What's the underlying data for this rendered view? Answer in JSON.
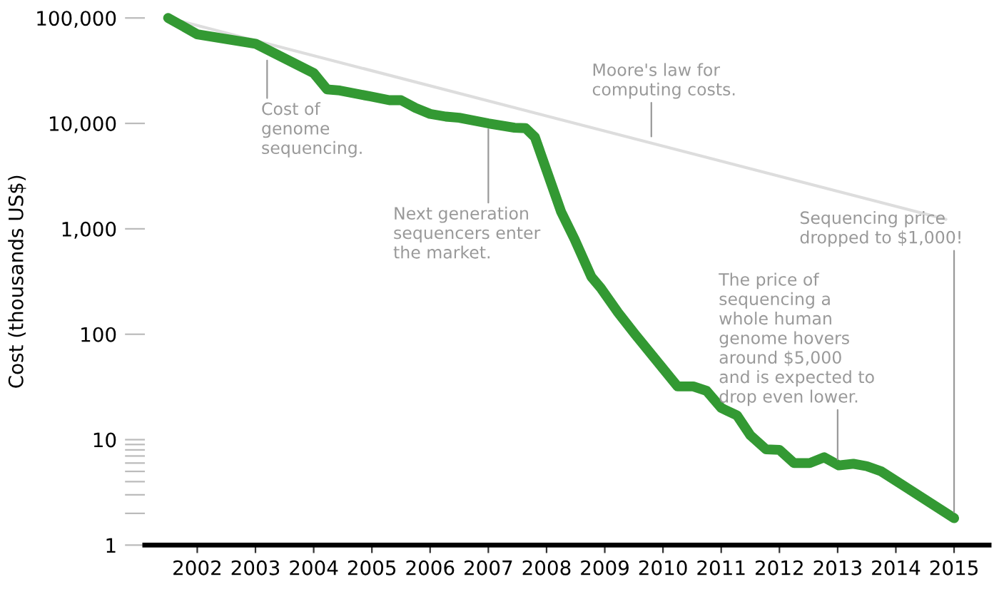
{
  "chart_data": {
    "type": "line",
    "ylabel": "Cost (thousands US$)",
    "log": "y",
    "grid": false,
    "legend": false,
    "marker": "none",
    "line_style": "solid",
    "xlim": [
      2001.1,
      2015.6
    ],
    "xticks": [
      2002,
      2003,
      2004,
      2005,
      2006,
      2007,
      2008,
      2009,
      2010,
      2011,
      2012,
      2013,
      2014,
      2015
    ],
    "ylim": [
      1,
      100000
    ],
    "yticks": [
      {
        "value": 1,
        "label": "1"
      },
      {
        "value": 2,
        "label": null
      },
      {
        "value": 3,
        "label": null
      },
      {
        "value": 4,
        "label": null
      },
      {
        "value": 5,
        "label": null
      },
      {
        "value": 6,
        "label": null
      },
      {
        "value": 7,
        "label": null
      },
      {
        "value": 8,
        "label": null
      },
      {
        "value": 9,
        "label": null
      },
      {
        "value": 10,
        "label": "10"
      },
      {
        "value": 100,
        "label": "100"
      },
      {
        "value": 1000,
        "label": "1,000"
      },
      {
        "value": 10000,
        "label": "10,000"
      },
      {
        "value": 100000,
        "label": "100,000"
      }
    ],
    "series": [
      {
        "color": "#dddddd",
        "x": [
          2001.5,
          2014.86
        ],
        "values": [
          100000,
          1230
        ]
      },
      {
        "color": "#339933",
        "x": [
          2001.5,
          2002.0,
          2003.0,
          2004.0,
          2004.23,
          2004.45,
          2004.98,
          2005.3,
          2005.5,
          2005.75,
          2006.0,
          2006.27,
          2006.5,
          2007.0,
          2007.45,
          2007.64,
          2007.8,
          2008.25,
          2008.48,
          2008.77,
          2008.93,
          2009.23,
          2009.52,
          2010.25,
          2010.52,
          2010.75,
          2011.0,
          2011.27,
          2011.5,
          2011.77,
          2012.0,
          2012.25,
          2012.52,
          2012.77,
          2013.02,
          2013.27,
          2013.5,
          2013.75,
          2015.0
        ],
        "values": [
          100000,
          70000,
          57000,
          30000,
          21000,
          20500,
          18000,
          16600,
          16600,
          14000,
          12300,
          11600,
          11300,
          10000,
          9100,
          9000,
          7400,
          1450,
          800,
          350,
          275,
          160,
          100,
          32,
          32,
          29,
          20,
          17,
          11,
          8.1,
          8,
          6,
          6,
          6.8,
          5.7,
          5.9,
          5.6,
          5,
          1.8
        ]
      }
    ],
    "annotations": [
      {
        "text": "Cost of\ngenome\nsequencing.",
        "x": 2003.2,
        "y": 45000
      },
      {
        "text": "Next generation\nsequencers enter\nthe market.",
        "x": 2007.0,
        "y": 10000
      },
      {
        "text": "Moore's law for\ncomputing costs.",
        "x": 2009.8,
        "y": 6600
      },
      {
        "text": "Sequencing price\ndropped to $1,000!",
        "x": 2015.0,
        "y": 1.8
      },
      {
        "text": "The price of\nsequencing a\nwhole human\ngenome hovers\naround $5,000\nand is expected to\ndrop even lower.",
        "x": 2013.0,
        "y": 5.7
      }
    ]
  }
}
